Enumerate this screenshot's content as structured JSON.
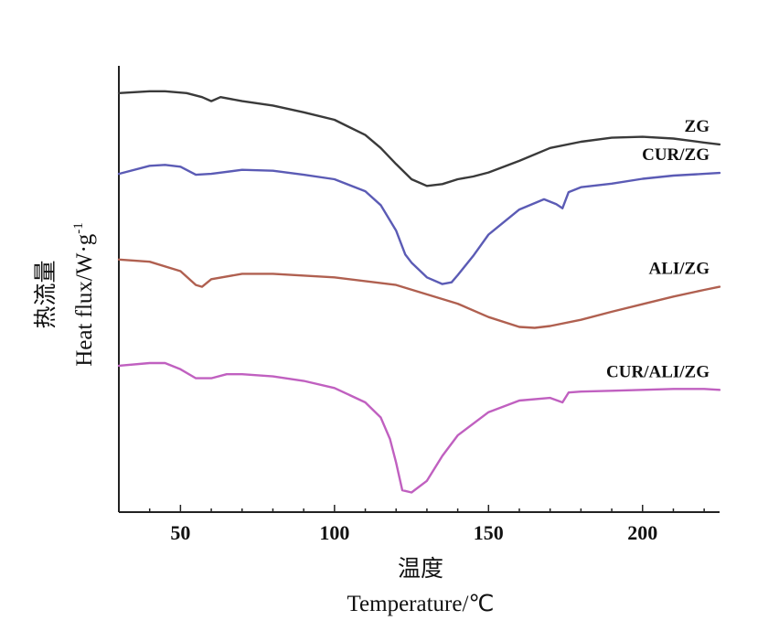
{
  "chart_data": {
    "type": "line",
    "xlabel_cn": "温度",
    "xlabel": "Temperature/℃",
    "ylabel_cn": "热流量",
    "ylabel": "Heat flux/W·g",
    "ylabel_exp": "-1",
    "x_ticks": [
      "50",
      "100",
      "150",
      "200"
    ],
    "xlim": [
      30,
      225
    ],
    "ylim": [
      0,
      100
    ],
    "y_ticks_labeled": false,
    "series": [
      {
        "name": "ZG",
        "color": "#3a3a3a",
        "x": [
          30,
          40,
          45,
          52,
          57,
          60,
          63,
          70,
          80,
          90,
          100,
          110,
          115,
          120,
          125,
          130,
          135,
          140,
          145,
          150,
          160,
          170,
          180,
          190,
          200,
          210,
          220,
          225
        ],
        "y": [
          93.9,
          94.3,
          94.3,
          93.9,
          93.0,
          92.1,
          93.0,
          92.1,
          91.1,
          89.6,
          87.9,
          84.5,
          81.6,
          78.0,
          74.6,
          73.1,
          73.5,
          74.6,
          75.2,
          76.1,
          78.7,
          81.6,
          83.0,
          83.9,
          84.1,
          83.7,
          82.8,
          82.4
        ]
      },
      {
        "name": "CUR/ZG",
        "color": "#5b5bb5",
        "x": [
          30,
          40,
          45,
          50,
          55,
          60,
          70,
          80,
          90,
          100,
          110,
          115,
          120,
          123,
          125,
          130,
          135,
          138,
          140,
          145,
          150,
          160,
          168,
          172,
          174,
          176,
          180,
          190,
          200,
          210,
          220,
          225
        ],
        "y": [
          75.8,
          77.6,
          77.8,
          77.4,
          75.6,
          75.8,
          76.7,
          76.5,
          75.6,
          74.6,
          71.9,
          68.8,
          63.1,
          57.7,
          55.9,
          52.6,
          51.1,
          51.5,
          53.1,
          57.4,
          62.2,
          67.8,
          70.1,
          69.0,
          68.1,
          71.7,
          72.8,
          73.6,
          74.7,
          75.4,
          75.8,
          76.0
        ]
      },
      {
        "name": "ALI/ZG",
        "color": "#b06050",
        "x": [
          30,
          40,
          50,
          55,
          57,
          60,
          70,
          80,
          100,
          120,
          140,
          150,
          160,
          165,
          170,
          180,
          190,
          200,
          210,
          220,
          225
        ],
        "y": [
          56.6,
          56.1,
          54.0,
          50.9,
          50.5,
          52.2,
          53.4,
          53.4,
          52.6,
          50.9,
          46.7,
          43.7,
          41.5,
          41.3,
          41.7,
          43.1,
          44.9,
          46.6,
          48.3,
          49.8,
          50.5
        ]
      },
      {
        "name": "CUR/ALI/ZG",
        "color": "#c060c0",
        "x": [
          30,
          40,
          45,
          50,
          55,
          60,
          65,
          70,
          80,
          90,
          100,
          110,
          115,
          118,
          120,
          122,
          125,
          130,
          135,
          140,
          150,
          160,
          170,
          174,
          176,
          180,
          190,
          200,
          210,
          220,
          225
        ],
        "y": [
          32.8,
          33.4,
          33.4,
          32.0,
          30.0,
          30.0,
          30.9,
          30.9,
          30.4,
          29.4,
          27.8,
          24.6,
          21.2,
          16.4,
          11.1,
          4.9,
          4.4,
          7.0,
          12.6,
          17.2,
          22.4,
          25.0,
          25.6,
          24.6,
          26.8,
          27.0,
          27.2,
          27.4,
          27.6,
          27.6,
          27.4
        ]
      }
    ]
  }
}
